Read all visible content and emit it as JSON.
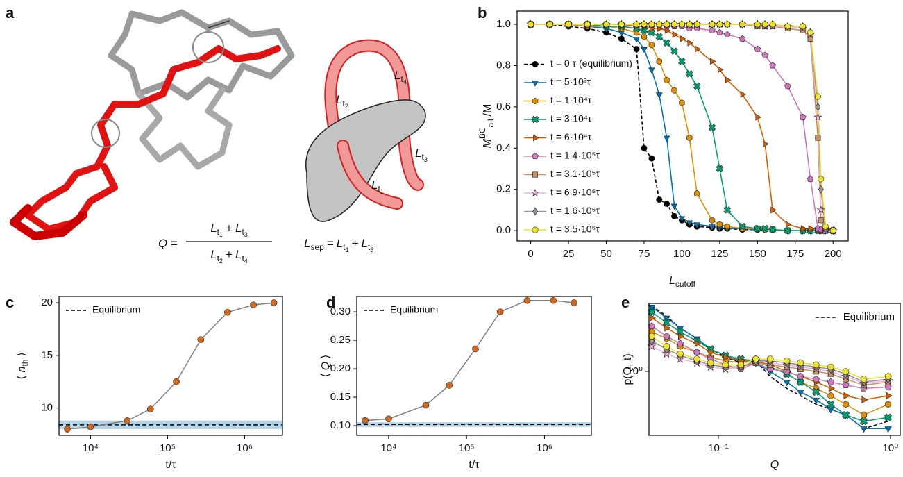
{
  "illustration": {
    "panel_label": "a",
    "q_formula": {
      "lhs": "Q",
      "eq": "=",
      "numerator": [
        {
          "base": "L",
          "sub": "t",
          "subsub": "1"
        },
        "+",
        {
          "base": "L",
          "sub": "t",
          "subsub": "3"
        }
      ],
      "denominator": [
        {
          "base": "L",
          "sub": "t",
          "subsub": "2"
        },
        "+",
        {
          "base": "L",
          "sub": "t",
          "subsub": "4"
        }
      ]
    },
    "sep_formula": [
      {
        "base": "L",
        "sub": "sep"
      },
      "=",
      {
        "base": "L",
        "sub": "t",
        "subsub": "1"
      },
      "+",
      {
        "base": "L",
        "sub": "t",
        "subsub": "3"
      }
    ],
    "labels": [
      {
        "base": "L",
        "sub": "t",
        "subsub": "2"
      },
      {
        "base": "L",
        "sub": "t",
        "subsub": "4"
      },
      {
        "base": "L",
        "sub": "t",
        "subsub": "3"
      },
      {
        "base": "L",
        "sub": "t",
        "subsub": "1"
      }
    ]
  },
  "chart_data": [
    {
      "type": "line",
      "panel_label": "b",
      "xlabel": {
        "base": "L",
        "sub": "cutoff"
      },
      "ylabel": {
        "base": "M",
        "sup": "BC",
        "sub": "all",
        "rest": "/M"
      },
      "xlim": [
        -9,
        210
      ],
      "ylim": [
        -0.05,
        1.064
      ],
      "xticks": [
        0,
        25,
        50,
        75,
        100,
        125,
        150,
        175,
        200
      ],
      "yticks": [
        {
          "value": 0,
          "label": "0.0"
        },
        {
          "value": 0.2,
          "label": "0.2"
        },
        {
          "value": 0.4,
          "label": "0.4"
        },
        {
          "value": 0.6,
          "label": "0.6"
        },
        {
          "value": 0.8,
          "label": "0.8"
        },
        {
          "value": 1,
          "label": "1.0"
        }
      ],
      "grid": false,
      "legend": "lower left",
      "x": [
        0,
        12.5,
        25,
        37.5,
        50,
        60,
        70,
        75,
        80,
        85,
        90,
        95,
        100,
        105,
        110,
        120,
        125,
        130,
        140,
        150,
        155,
        160,
        170,
        180,
        185,
        190,
        192,
        195,
        200
      ],
      "series": [
        {
          "name": "t = 0 τ (equilibrium)",
          "color": "#000000",
          "marker": "o",
          "dashed": true,
          "values": [
            1,
            1,
            0.99,
            0.98,
            0.96,
            0.93,
            0.88,
            0.4,
            0.35,
            0.15,
            0.13,
            0.07,
            0.05,
            0.03,
            0.02,
            0.015,
            0.01,
            0.01,
            0.005,
            0.005,
            0.005,
            0.005,
            0,
            0,
            0,
            0,
            0,
            0,
            0
          ]
        },
        {
          "name": "t = 5·10³τ",
          "color": "#0173b2",
          "marker": "v",
          "values": [
            1,
            1,
            1,
            0.99,
            0.98,
            0.96,
            0.93,
            0.88,
            0.78,
            0.66,
            0.45,
            0.12,
            0.06,
            0.04,
            0.03,
            0.02,
            0.015,
            0.01,
            0.01,
            0.005,
            0.005,
            0.005,
            0,
            0,
            0,
            0,
            0,
            0,
            0
          ]
        },
        {
          "name": "t = 1·10⁴τ",
          "color": "#de8f05",
          "marker": "h",
          "values": [
            1,
            1,
            1,
            0.99,
            0.99,
            0.98,
            0.96,
            0.94,
            0.9,
            0.82,
            0.73,
            0.68,
            0.62,
            0.45,
            0.18,
            0.05,
            0.03,
            0.02,
            0.01,
            0.01,
            0.005,
            0.005,
            0,
            0,
            0,
            0,
            0,
            0,
            0
          ]
        },
        {
          "name": "t = 3·10⁴τ",
          "color": "#029e73",
          "marker": "X",
          "values": [
            1,
            1,
            1,
            1,
            0.99,
            0.99,
            0.98,
            0.97,
            0.96,
            0.94,
            0.91,
            0.87,
            0.82,
            0.76,
            0.7,
            0.5,
            0.3,
            0.1,
            0.02,
            0.01,
            0.01,
            0.005,
            0,
            0,
            0,
            0,
            0,
            0,
            0
          ]
        },
        {
          "name": "t = 6·10⁴τ",
          "color": "#d55e00",
          "marker": ">",
          "values": [
            1,
            1,
            1,
            1,
            1,
            1,
            0.99,
            0.99,
            0.98,
            0.98,
            0.97,
            0.95,
            0.93,
            0.91,
            0.88,
            0.82,
            0.78,
            0.73,
            0.66,
            0.55,
            0.42,
            0.1,
            0.03,
            0.01,
            0.01,
            0.005,
            0,
            0,
            0
          ]
        },
        {
          "name": "t = 1.4·10⁵τ",
          "color": "#cc78bc",
          "marker": "p",
          "values": [
            1,
            1,
            1,
            1,
            1,
            1,
            1,
            1,
            1,
            1,
            0.99,
            0.99,
            0.99,
            0.98,
            0.98,
            0.97,
            0.96,
            0.95,
            0.93,
            0.88,
            0.85,
            0.8,
            0.7,
            0.55,
            0.25,
            0.01,
            0.005,
            0,
            0
          ]
        },
        {
          "name": "t = 3.1·10⁵τ",
          "color": "#ca9161",
          "marker": "s",
          "values": [
            1,
            1,
            1,
            1,
            1,
            1,
            1,
            1,
            1,
            1,
            1,
            1,
            1,
            1,
            1,
            1,
            1,
            1,
            1,
            0.99,
            0.99,
            0.99,
            0.98,
            0.97,
            0.93,
            0.45,
            0.05,
            0.01,
            0
          ]
        },
        {
          "name": "t = 6.9·10⁵τ",
          "color": "#fbafe4",
          "marker": "*",
          "values": [
            1,
            1,
            1,
            1,
            1,
            1,
            1,
            1,
            1,
            1,
            1,
            1,
            1,
            1,
            1,
            1,
            1,
            1,
            1,
            1,
            0.99,
            0.99,
            0.99,
            0.98,
            0.95,
            0.55,
            0.1,
            0.01,
            0
          ]
        },
        {
          "name": "t = 1.6·10⁶τ",
          "color": "#949494",
          "marker": "d",
          "values": [
            1,
            1,
            1,
            1,
            1,
            1,
            1,
            1,
            1,
            1,
            1,
            1,
            1,
            1,
            1,
            1,
            1,
            1,
            1,
            1,
            1,
            1,
            0.99,
            0.99,
            0.96,
            0.6,
            0.2,
            0.01,
            0
          ]
        },
        {
          "name": "t = 3.5·10⁶τ",
          "color": "#ece133",
          "marker": "o",
          "values": [
            1,
            1,
            1,
            1,
            1,
            1,
            1,
            1,
            1,
            1,
            1,
            1,
            1,
            1,
            1,
            1,
            1,
            1,
            1,
            1,
            1,
            1,
            0.99,
            0.99,
            0.96,
            0.65,
            0.25,
            0.02,
            0
          ]
        }
      ]
    },
    {
      "type": "line",
      "panel_label": "c",
      "xlabel": "t/τ",
      "ylabel": {
        "open": "⟨",
        "base": "n",
        "sub": "th",
        "close": "⟩"
      },
      "xscale": "log",
      "xlim": [
        3900,
        3100000
      ],
      "ylim": [
        7.4,
        20.6
      ],
      "xticks": [
        {
          "value": 10000,
          "label": "10⁴"
        },
        {
          "value": 100000,
          "label": "10⁵"
        },
        {
          "value": 1000000,
          "label": "10⁶"
        }
      ],
      "yticks": [
        10,
        15,
        20
      ],
      "grid": false,
      "legend": "upper left",
      "reference": {
        "name": "Equilibrium",
        "value": 8.4,
        "band": [
          8.0,
          8.8
        ],
        "band_color": "#a9cce3"
      },
      "x": [
        5000,
        10000,
        30000,
        60000,
        130000,
        270000,
        600000,
        1300000,
        2400000
      ],
      "series": [
        {
          "color": "#d2691e",
          "line_color": "#808080",
          "marker": "o",
          "values": [
            8.0,
            8.2,
            8.8,
            9.9,
            12.5,
            16.5,
            19.1,
            19.8,
            20.0
          ]
        }
      ]
    },
    {
      "type": "line",
      "panel_label": "d",
      "xlabel": "t/τ",
      "ylabel": {
        "open": "⟨",
        "base": "Q",
        "close": "⟩"
      },
      "xscale": "log",
      "xlim": [
        3900,
        4000000
      ],
      "ylim": [
        0.083,
        0.327
      ],
      "xticks": [
        {
          "value": 10000,
          "label": "10⁴"
        },
        {
          "value": 100000,
          "label": "10⁵"
        },
        {
          "value": 1000000,
          "label": "10⁶"
        }
      ],
      "yticks": [
        {
          "value": 0.1,
          "label": "0.10"
        },
        {
          "value": 0.15,
          "label": "0.15"
        },
        {
          "value": 0.2,
          "label": "0.20"
        },
        {
          "value": 0.25,
          "label": "0.25"
        },
        {
          "value": 0.3,
          "label": "0.30"
        }
      ],
      "grid": false,
      "legend": "upper left",
      "reference": {
        "name": "Equilibrium",
        "value": 0.102,
        "band": [
          0.098,
          0.106
        ],
        "band_color": "#a9cce3"
      },
      "x": [
        5000,
        10000,
        30000,
        60000,
        130000,
        270000,
        600000,
        1300000,
        2400000
      ],
      "series": [
        {
          "color": "#d2691e",
          "line_color": "#808080",
          "marker": "o",
          "values": [
            0.109,
            0.112,
            0.136,
            0.171,
            0.235,
            0.3,
            0.32,
            0.32,
            0.316
          ]
        }
      ]
    },
    {
      "type": "line",
      "panel_label": "e",
      "xlabel": {
        "base": "Q"
      },
      "ylabel": "p(Q, t)",
      "xscale": "log",
      "yscale": "log",
      "xlim": [
        0.0395,
        1.14
      ],
      "ylim": [
        0.26,
        4.2
      ],
      "xticks": [
        {
          "value": 0.1,
          "label": "10⁻¹"
        },
        {
          "value": 1,
          "label": "10⁰"
        }
      ],
      "yticks": [
        {
          "value": 1,
          "label": "10⁰"
        }
      ],
      "grid": false,
      "legend": "upper right",
      "x": [
        0.041,
        0.05,
        0.06,
        0.075,
        0.09,
        0.11,
        0.135,
        0.165,
        0.2,
        0.25,
        0.3,
        0.37,
        0.45,
        0.55,
        0.7,
        0.97
      ],
      "series": [
        {
          "name": "Equilibrium",
          "color": "#000000",
          "dashed": true,
          "values": [
            4.0,
            3.2,
            2.5,
            2.0,
            1.6,
            1.35,
            1.2,
            1.25,
            0.9,
            0.7,
            0.6,
            0.5,
            0.45,
            0.4,
            0.3,
            0.35
          ]
        },
        {
          "color": "#0173b2",
          "marker": "v",
          "values": [
            3.9,
            3.1,
            2.5,
            2.0,
            1.6,
            1.4,
            1.25,
            1.2,
            1.0,
            0.8,
            0.65,
            0.55,
            0.45,
            0.4,
            0.3,
            0.3
          ]
        },
        {
          "color": "#de8f05",
          "marker": "h",
          "values": [
            2.3,
            2.0,
            1.7,
            1.5,
            1.35,
            1.25,
            1.2,
            1.3,
            1.1,
            0.95,
            0.8,
            0.7,
            0.6,
            0.5,
            0.4,
            0.5
          ]
        },
        {
          "color": "#029e73",
          "marker": "X",
          "values": [
            3.5,
            2.8,
            2.3,
            1.9,
            1.6,
            1.4,
            1.3,
            1.25,
            1.1,
            0.95,
            0.8,
            0.65,
            0.5,
            0.4,
            0.35,
            0.38
          ]
        },
        {
          "color": "#d55e00",
          "marker": ">",
          "values": [
            3.1,
            2.5,
            2.1,
            1.8,
            1.5,
            1.35,
            1.25,
            1.25,
            1.15,
            1.0,
            0.9,
            0.8,
            0.7,
            0.6,
            0.55,
            0.6
          ]
        },
        {
          "color": "#cc78bc",
          "marker": "p",
          "values": [
            2.6,
            2.1,
            1.8,
            1.5,
            1.3,
            1.15,
            1.05,
            1.2,
            1.05,
            1.0,
            0.9,
            0.85,
            0.8,
            0.75,
            0.7,
            0.72
          ]
        },
        {
          "color": "#ca9161",
          "marker": "s",
          "values": [
            1.9,
            1.6,
            1.4,
            1.25,
            1.15,
            1.1,
            1.1,
            1.2,
            1.15,
            1.1,
            1.05,
            1.0,
            0.95,
            0.85,
            0.75,
            0.8
          ]
        },
        {
          "color": "#fbafe4",
          "marker": "*",
          "values": [
            1.7,
            1.45,
            1.3,
            1.2,
            1.1,
            1.05,
            1.1,
            1.25,
            1.2,
            1.15,
            1.1,
            1.05,
            1.0,
            0.9,
            0.78,
            0.82
          ]
        },
        {
          "color": "#949494",
          "marker": "d",
          "values": [
            1.9,
            1.6,
            1.4,
            1.25,
            1.15,
            1.1,
            1.1,
            1.25,
            1.25,
            1.2,
            1.15,
            1.1,
            1.05,
            0.95,
            0.8,
            0.85
          ]
        },
        {
          "color": "#ece133",
          "marker": "o",
          "values": [
            2.1,
            1.7,
            1.45,
            1.3,
            1.2,
            1.15,
            1.15,
            1.3,
            1.3,
            1.25,
            1.2,
            1.15,
            1.1,
            1.0,
            0.85,
            0.9
          ]
        }
      ]
    }
  ]
}
